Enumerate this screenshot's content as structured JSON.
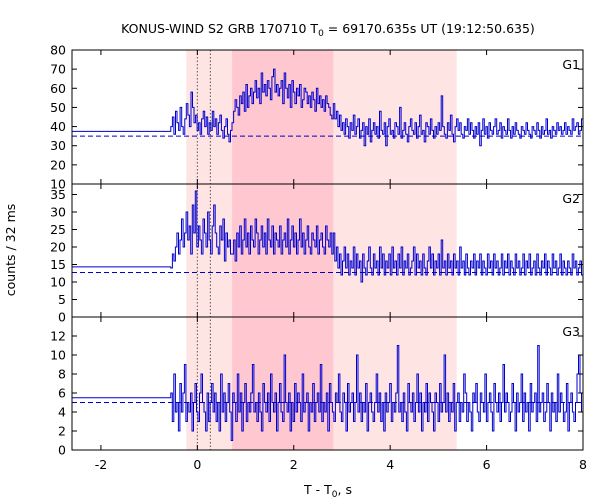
{
  "chart_data": {
    "type": "line",
    "title": "KONUS-WIND S2 GRB 170710 T",
    "title_sub": "0",
    "title_rest": " = 69170.635s UT (19:12:50.635)",
    "xlabel": "T - T",
    "xlabel_sub": "0",
    "xlabel_rest": ", s",
    "ylabel": "counts / 32 ms",
    "xlim": [
      -2.6,
      8.0
    ],
    "x_ticks": [
      -2,
      0,
      2,
      4,
      6,
      8
    ],
    "x_tick_labels": [
      "-2",
      "0",
      "2",
      "4",
      "6",
      "8"
    ],
    "line_color": "#0000cc",
    "shade_outer_color": "#ffe4e4",
    "shade_inner_color": "#ffc8d0",
    "shaded_intervals": [
      {
        "kind": "outer",
        "x": [
          -0.23,
          5.38
        ]
      },
      {
        "kind": "inner",
        "x": [
          0.72,
          2.82
        ]
      }
    ],
    "marker_lines_x": [
      0.0,
      0.27
    ],
    "panels": [
      {
        "name": "G1",
        "ylim": [
          10,
          80
        ],
        "y_ticks": [
          10,
          20,
          30,
          40,
          50,
          60,
          70,
          80
        ],
        "y_tick_labels": [
          "10",
          "20",
          "30",
          "40",
          "50",
          "60",
          "70",
          "80"
        ],
        "pre_level": 37.5,
        "background": 35,
        "segments": [
          {
            "x0": -0.55,
            "x1": -0.1,
            "values": [
              40,
              45,
              36,
              48,
              42,
              38,
              50,
              40,
              36,
              44,
              52,
              46,
              40,
              58
            ]
          },
          {
            "x0": -0.1,
            "x1": 0.72,
            "values": [
              50,
              42,
              46,
              38,
              42,
              36,
              44,
              48,
              40,
              45,
              36,
              42,
              38,
              48,
              40,
              44,
              36,
              42,
              46,
              38,
              34,
              40,
              44,
              36,
              32,
              38
            ]
          },
          {
            "x0": 0.72,
            "x1": 2.82,
            "values": [
              42,
              48,
              54,
              50,
              46,
              56,
              52,
              58,
              48,
              62,
              50,
              56,
              60,
              52,
              58,
              64,
              55,
              60,
              52,
              68,
              58,
              62,
              56,
              64,
              60,
              54,
              66,
              70,
              58,
              62,
              56,
              60,
              64,
              52,
              68,
              60,
              55,
              62,
              50,
              64,
              58,
              52,
              60,
              56,
              62,
              50,
              54,
              60,
              58,
              52,
              56,
              50,
              58,
              54,
              48,
              60,
              52,
              56,
              50,
              54,
              48,
              56,
              52,
              50,
              46,
              44
            ]
          },
          {
            "x0": 2.82,
            "x1": 8.0,
            "values": [
              52,
              44,
              48,
              40,
              46,
              38,
              42,
              36,
              44,
              40,
              34,
              42,
              38,
              46,
              36,
              40,
              44,
              34,
              38,
              42,
              30,
              40,
              36,
              44,
              32,
              38,
              42,
              36,
              40,
              34,
              48,
              38,
              36,
              42,
              30,
              40,
              44,
              36,
              38,
              34,
              42,
              40,
              36,
              50,
              34,
              38,
              42,
              36,
              32,
              40,
              44,
              38,
              36,
              42,
              34,
              40,
              46,
              36,
              38,
              32,
              42,
              40,
              36,
              44,
              38,
              34,
              40,
              36,
              42,
              38,
              56,
              40,
              36,
              34,
              42,
              38,
              46,
              36,
              32,
              40,
              44,
              38,
              42,
              36,
              34,
              40,
              38,
              44,
              36,
              42,
              38,
              34,
              40,
              36,
              42,
              30,
              38,
              44,
              36,
              40,
              34,
              42,
              38,
              36,
              40,
              44,
              36,
              38,
              42,
              34,
              40,
              38,
              36,
              44,
              38,
              34,
              40,
              36,
              42,
              38,
              36,
              34,
              40,
              38,
              36,
              42,
              38,
              36,
              34,
              40,
              38,
              36,
              42,
              38,
              34,
              40,
              36,
              38,
              44,
              36,
              38,
              34,
              40,
              38,
              36,
              42,
              38,
              40,
              36,
              38,
              42,
              36,
              40,
              38,
              36,
              44,
              38,
              40,
              42,
              36,
              38,
              44
            ]
          }
        ]
      },
      {
        "name": "G2",
        "ylim": [
          0,
          38
        ],
        "y_ticks": [
          0,
          5,
          10,
          15,
          20,
          25,
          30,
          35
        ],
        "y_tick_labels": [
          "0",
          "5",
          "10",
          "15",
          "20",
          "25",
          "30",
          "35"
        ],
        "pre_level": 14.3,
        "background": 12.7,
        "segments": [
          {
            "x0": -0.55,
            "x1": 0.72,
            "values": [
              14,
              18,
              16,
              20,
              24,
              18,
              22,
              28,
              20,
              24,
              30,
              22,
              26,
              18,
              32,
              24,
              36,
              20,
              26,
              22,
              18,
              28,
              24,
              20,
              30,
              22,
              18,
              26,
              32,
              24,
              20,
              18,
              26,
              22,
              28,
              16,
              24,
              20,
              22,
              18
            ]
          },
          {
            "x0": 0.72,
            "x1": 2.82,
            "values": [
              18,
              22,
              16,
              24,
              20,
              26,
              18,
              22,
              28,
              20,
              24,
              18,
              26,
              22,
              20,
              28,
              24,
              18,
              22,
              26,
              20,
              24,
              18,
              28,
              22,
              20,
              26,
              18,
              24,
              22,
              20,
              26,
              18,
              22,
              24,
              20,
              28,
              18,
              22,
              26,
              20,
              24,
              18,
              22,
              28,
              20,
              24,
              18,
              22,
              26,
              20,
              18,
              24,
              22,
              20,
              26,
              18,
              22,
              24,
              20,
              18,
              26,
              22,
              20,
              24,
              18
            ]
          },
          {
            "x0": 2.82,
            "x1": 8.0,
            "values": [
              24,
              16,
              20,
              14,
              18,
              12,
              16,
              20,
              14,
              18,
              12,
              16,
              14,
              20,
              12,
              18,
              14,
              16,
              10,
              18,
              14,
              12,
              16,
              20,
              14,
              12,
              18,
              14,
              16,
              12,
              20,
              14,
              18,
              12,
              16,
              14,
              18,
              12,
              20,
              14,
              16,
              12,
              18,
              14,
              20,
              12,
              16,
              14,
              18,
              12,
              14,
              16,
              20,
              12,
              18,
              14,
              16,
              12,
              18,
              14,
              12,
              16,
              20,
              14,
              18,
              12,
              16,
              14,
              18,
              12,
              22,
              14,
              16,
              12,
              18,
              14,
              16,
              12,
              18,
              14,
              16,
              12,
              20,
              14,
              16,
              12,
              18,
              14,
              12,
              16,
              14,
              18,
              12,
              16,
              14,
              18,
              12,
              16,
              14,
              12,
              18,
              14,
              16,
              12,
              18,
              14,
              16,
              12,
              14,
              18,
              12,
              16,
              14,
              18,
              12,
              16,
              14,
              12,
              18,
              14,
              16,
              12,
              14,
              18,
              12,
              16,
              14,
              18,
              12,
              14,
              16,
              12,
              18,
              14,
              12,
              16,
              14,
              18,
              12,
              16,
              14,
              12,
              18,
              14,
              16,
              12,
              14,
              18,
              12,
              16,
              14,
              12,
              16,
              14,
              12,
              18,
              14,
              16,
              12,
              14,
              16,
              12
            ]
          }
        ]
      },
      {
        "name": "G3",
        "ylim": [
          0,
          14
        ],
        "y_ticks": [
          0,
          2,
          4,
          6,
          8,
          10,
          12
        ],
        "y_tick_labels": [
          "0",
          "2",
          "4",
          "6",
          "8",
          "10",
          "12"
        ],
        "pre_level": 5.5,
        "background": 5.0,
        "segments": [
          {
            "x0": -0.55,
            "x1": 8.0,
            "values": [
              6,
              3,
              8,
              4,
              5,
              2,
              7,
              4,
              6,
              9,
              3,
              5,
              4,
              6,
              2,
              5,
              7,
              4,
              3,
              6,
              8,
              5,
              4,
              2,
              6,
              3,
              5,
              7,
              4,
              6,
              3,
              5,
              2,
              8,
              4,
              6,
              3,
              5,
              7,
              4,
              1,
              6,
              5,
              3,
              8,
              4,
              6,
              2,
              5,
              7,
              3,
              5,
              4,
              6,
              9,
              4,
              5,
              3,
              6,
              4,
              2,
              7,
              5,
              4,
              6,
              3,
              8,
              5,
              4,
              6,
              2,
              5,
              7,
              4,
              3,
              10,
              5,
              4,
              6,
              2,
              5,
              3,
              7,
              4,
              6,
              5,
              3,
              8,
              4,
              5,
              6,
              2,
              5,
              4,
              7,
              3,
              5,
              6,
              4,
              9,
              3,
              5,
              4,
              6,
              2,
              7,
              5,
              4,
              3,
              6,
              5,
              8,
              4,
              3,
              6,
              5,
              2,
              7,
              4,
              5,
              6,
              3,
              5,
              10,
              4,
              6,
              3,
              5,
              4,
              7,
              2,
              5,
              6,
              4,
              3,
              5,
              8,
              4,
              6,
              3,
              5,
              2,
              6,
              4,
              5,
              7,
              3,
              5,
              4,
              6,
              11,
              4,
              5,
              3,
              6,
              4,
              2,
              7,
              5,
              4,
              6,
              3,
              5,
              8,
              4,
              6,
              2,
              5,
              4,
              7,
              3,
              6,
              5,
              4,
              2,
              6,
              5,
              3,
              7,
              4,
              5,
              10,
              4,
              6,
              3,
              5,
              4,
              7,
              2,
              5,
              6,
              3,
              5,
              4,
              8,
              6,
              3,
              5,
              4,
              2,
              6,
              5,
              7,
              4,
              3,
              6,
              5,
              4,
              8,
              3,
              5,
              6,
              4,
              2,
              7,
              5,
              4,
              6,
              3,
              5,
              9,
              4,
              6,
              5,
              3,
              4,
              7,
              5,
              2,
              6,
              4,
              5,
              8,
              3,
              6,
              4,
              5,
              2,
              7,
              4,
              5,
              6,
              3,
              11,
              4,
              5,
              6,
              3,
              4,
              7,
              5,
              2,
              6,
              4,
              5,
              3,
              8,
              4,
              6,
              5,
              3,
              4,
              7,
              2,
              5,
              6,
              4,
              3,
              5,
              8,
              10,
              6,
              4
            ]
          }
        ]
      }
    ]
  }
}
